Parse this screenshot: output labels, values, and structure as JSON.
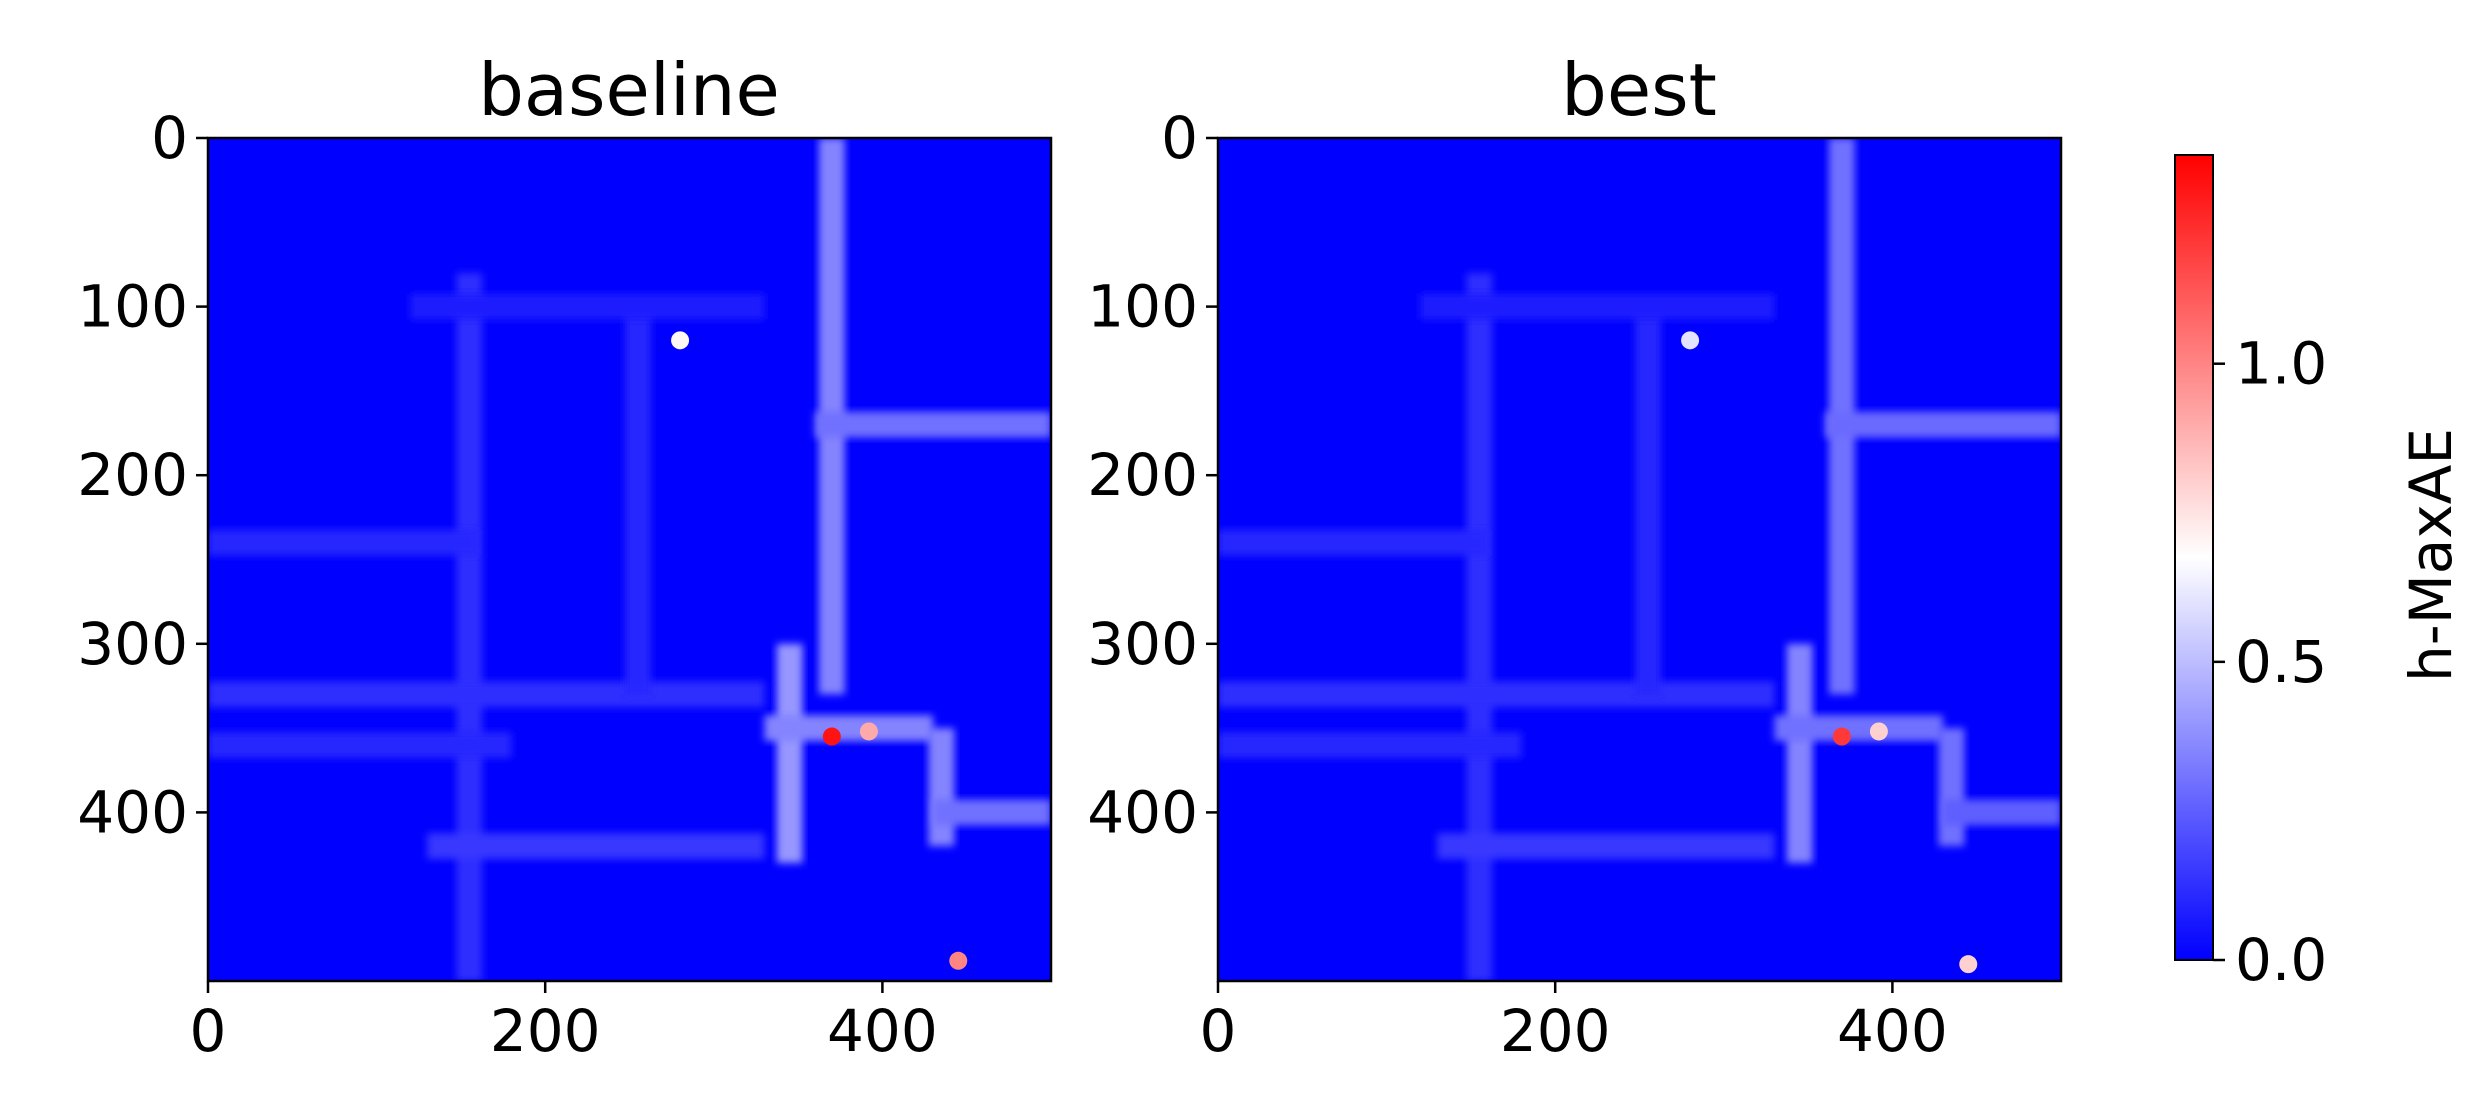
{
  "chart_data": [
    {
      "type": "heatmap",
      "title": "baseline",
      "xlabel": "",
      "ylabel": "",
      "xlim": [
        0,
        500
      ],
      "ylim": [
        500,
        0
      ],
      "xticks": [
        0,
        200,
        400
      ],
      "yticks": [
        0,
        100,
        200,
        300,
        400
      ],
      "grid": false,
      "colormap": "bwr",
      "background_value": 0.0,
      "features": [
        {
          "kind": "channel",
          "orientation": "vertical",
          "position": 370,
          "from": 0,
          "to": 330,
          "value": 0.35
        },
        {
          "kind": "channel",
          "orientation": "horizontal",
          "position": 170,
          "from": 360,
          "to": 500,
          "value": 0.3
        },
        {
          "kind": "channel",
          "orientation": "vertical",
          "position": 155,
          "from": 80,
          "to": 500,
          "value": 0.12
        },
        {
          "kind": "channel",
          "orientation": "horizontal",
          "position": 330,
          "from": 0,
          "to": 330,
          "value": 0.12
        },
        {
          "kind": "channel",
          "orientation": "horizontal",
          "position": 360,
          "from": 0,
          "to": 180,
          "value": 0.1
        },
        {
          "kind": "channel",
          "orientation": "horizontal",
          "position": 240,
          "from": 0,
          "to": 160,
          "value": 0.1
        },
        {
          "kind": "channel",
          "orientation": "vertical",
          "position": 255,
          "from": 100,
          "to": 330,
          "value": 0.1
        },
        {
          "kind": "channel",
          "orientation": "horizontal",
          "position": 100,
          "from": 120,
          "to": 330,
          "value": 0.08
        },
        {
          "kind": "channel",
          "orientation": "vertical",
          "position": 345,
          "from": 300,
          "to": 430,
          "value": 0.4
        },
        {
          "kind": "channel",
          "orientation": "horizontal",
          "position": 350,
          "from": 330,
          "to": 430,
          "value": 0.35
        },
        {
          "kind": "channel",
          "orientation": "vertical",
          "position": 435,
          "from": 350,
          "to": 420,
          "value": 0.35
        },
        {
          "kind": "channel",
          "orientation": "horizontal",
          "position": 400,
          "from": 430,
          "to": 500,
          "value": 0.3
        },
        {
          "kind": "channel",
          "orientation": "horizontal",
          "position": 420,
          "from": 130,
          "to": 330,
          "value": 0.15
        },
        {
          "kind": "hotspot",
          "x": 370,
          "y": 355,
          "value": 1.3
        },
        {
          "kind": "hotspot",
          "x": 392,
          "y": 352,
          "value": 0.9
        },
        {
          "kind": "hotspot",
          "x": 445,
          "y": 488,
          "value": 1.0
        },
        {
          "kind": "hotspot",
          "x": 280,
          "y": 120,
          "value": 0.7
        }
      ]
    },
    {
      "type": "heatmap",
      "title": "best",
      "xlabel": "",
      "ylabel": "",
      "xlim": [
        0,
        500
      ],
      "ylim": [
        500,
        0
      ],
      "xticks": [
        0,
        200,
        400
      ],
      "yticks": [
        0,
        100,
        200,
        300,
        400
      ],
      "grid": false,
      "colormap": "bwr",
      "background_value": 0.0,
      "features": [
        {
          "kind": "channel",
          "orientation": "vertical",
          "position": 370,
          "from": 0,
          "to": 330,
          "value": 0.3
        },
        {
          "kind": "channel",
          "orientation": "horizontal",
          "position": 170,
          "from": 360,
          "to": 500,
          "value": 0.28
        },
        {
          "kind": "channel",
          "orientation": "vertical",
          "position": 155,
          "from": 80,
          "to": 500,
          "value": 0.12
        },
        {
          "kind": "channel",
          "orientation": "horizontal",
          "position": 330,
          "from": 0,
          "to": 330,
          "value": 0.12
        },
        {
          "kind": "channel",
          "orientation": "horizontal",
          "position": 360,
          "from": 0,
          "to": 180,
          "value": 0.1
        },
        {
          "kind": "channel",
          "orientation": "horizontal",
          "position": 240,
          "from": 0,
          "to": 160,
          "value": 0.1
        },
        {
          "kind": "channel",
          "orientation": "vertical",
          "position": 255,
          "from": 100,
          "to": 330,
          "value": 0.1
        },
        {
          "kind": "channel",
          "orientation": "horizontal",
          "position": 100,
          "from": 120,
          "to": 330,
          "value": 0.08
        },
        {
          "kind": "channel",
          "orientation": "vertical",
          "position": 345,
          "from": 300,
          "to": 430,
          "value": 0.35
        },
        {
          "kind": "channel",
          "orientation": "horizontal",
          "position": 350,
          "from": 330,
          "to": 430,
          "value": 0.3
        },
        {
          "kind": "channel",
          "orientation": "vertical",
          "position": 435,
          "from": 350,
          "to": 420,
          "value": 0.3
        },
        {
          "kind": "channel",
          "orientation": "horizontal",
          "position": 400,
          "from": 430,
          "to": 500,
          "value": 0.25
        },
        {
          "kind": "channel",
          "orientation": "horizontal",
          "position": 420,
          "from": 130,
          "to": 330,
          "value": 0.15
        },
        {
          "kind": "hotspot",
          "x": 370,
          "y": 355,
          "value": 1.2
        },
        {
          "kind": "hotspot",
          "x": 392,
          "y": 352,
          "value": 0.8
        },
        {
          "kind": "hotspot",
          "x": 445,
          "y": 490,
          "value": 0.8
        },
        {
          "kind": "hotspot",
          "x": 280,
          "y": 120,
          "value": 0.6
        }
      ]
    }
  ],
  "colorbar": {
    "label": "h-MaxAE",
    "range": [
      0.0,
      1.35
    ],
    "ticks": [
      0.0,
      0.5,
      1.0
    ],
    "tick_labels": [
      "0.0",
      "0.5",
      "1.0"
    ],
    "colormap": "bwr"
  }
}
